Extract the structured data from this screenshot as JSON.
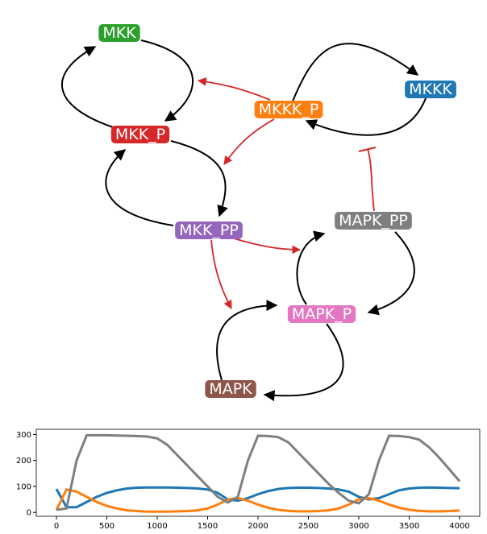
{
  "nodes": [
    {
      "label": "MKK",
      "color": "#2ca02c"
    },
    {
      "label": "MKKK",
      "color": "#1f77b4"
    },
    {
      "label": "MKKK_P",
      "color": "#ff7f0e"
    },
    {
      "label": "MKK_P",
      "color": "#d62728"
    },
    {
      "label": "MKK_PP",
      "color": "#9467bd"
    },
    {
      "label": "MAPK_PP",
      "color": "#7f7f7f"
    },
    {
      "label": "MAPK_P",
      "color": "#e377c2"
    },
    {
      "label": "MAPK",
      "color": "#8c564b"
    }
  ],
  "chart_data": {
    "type": "line",
    "x": [
      0,
      100,
      200,
      300,
      400,
      500,
      600,
      700,
      800,
      900,
      1000,
      1100,
      1200,
      1300,
      1400,
      1500,
      1600,
      1700,
      1800,
      1900,
      2000,
      2100,
      2200,
      2300,
      2400,
      2500,
      2600,
      2700,
      2800,
      2900,
      3000,
      3100,
      3200,
      3300,
      3400,
      3500,
      3600,
      3700,
      3800,
      3900,
      4000
    ],
    "series": [
      {
        "color": "#1f77b4",
        "values": [
          90,
          20,
          20,
          40,
          60,
          75,
          85,
          92,
          95,
          96,
          96,
          96,
          95,
          94,
          92,
          88,
          75,
          50,
          45,
          55,
          70,
          82,
          90,
          94,
          95,
          95,
          94,
          92,
          88,
          80,
          60,
          50,
          55,
          70,
          85,
          92,
          95,
          96,
          95,
          94,
          93
        ]
      },
      {
        "color": "#ff7f0e",
        "values": [
          10,
          88,
          80,
          60,
          40,
          25,
          15,
          8,
          5,
          3,
          3,
          3,
          4,
          5,
          8,
          15,
          30,
          50,
          55,
          45,
          30,
          18,
          10,
          6,
          4,
          4,
          5,
          8,
          15,
          30,
          50,
          55,
          45,
          30,
          18,
          10,
          6,
          4,
          4,
          5,
          7
        ]
      },
      {
        "color": "#7f7f7f",
        "values": [
          10,
          15,
          200,
          297,
          297,
          297,
          296,
          295,
          294,
          292,
          285,
          260,
          220,
          180,
          140,
          100,
          60,
          38,
          60,
          200,
          295,
          294,
          290,
          270,
          230,
          190,
          150,
          110,
          75,
          45,
          35,
          70,
          200,
          295,
          294,
          290,
          280,
          250,
          210,
          165,
          120
        ]
      }
    ],
    "xlim": [
      -200,
      4200
    ],
    "ylim": [
      -15,
      320
    ],
    "xticks": [
      0,
      500,
      1000,
      1500,
      2000,
      2500,
      3000,
      3500,
      4000
    ],
    "yticks": [
      0,
      100,
      200,
      300
    ]
  }
}
